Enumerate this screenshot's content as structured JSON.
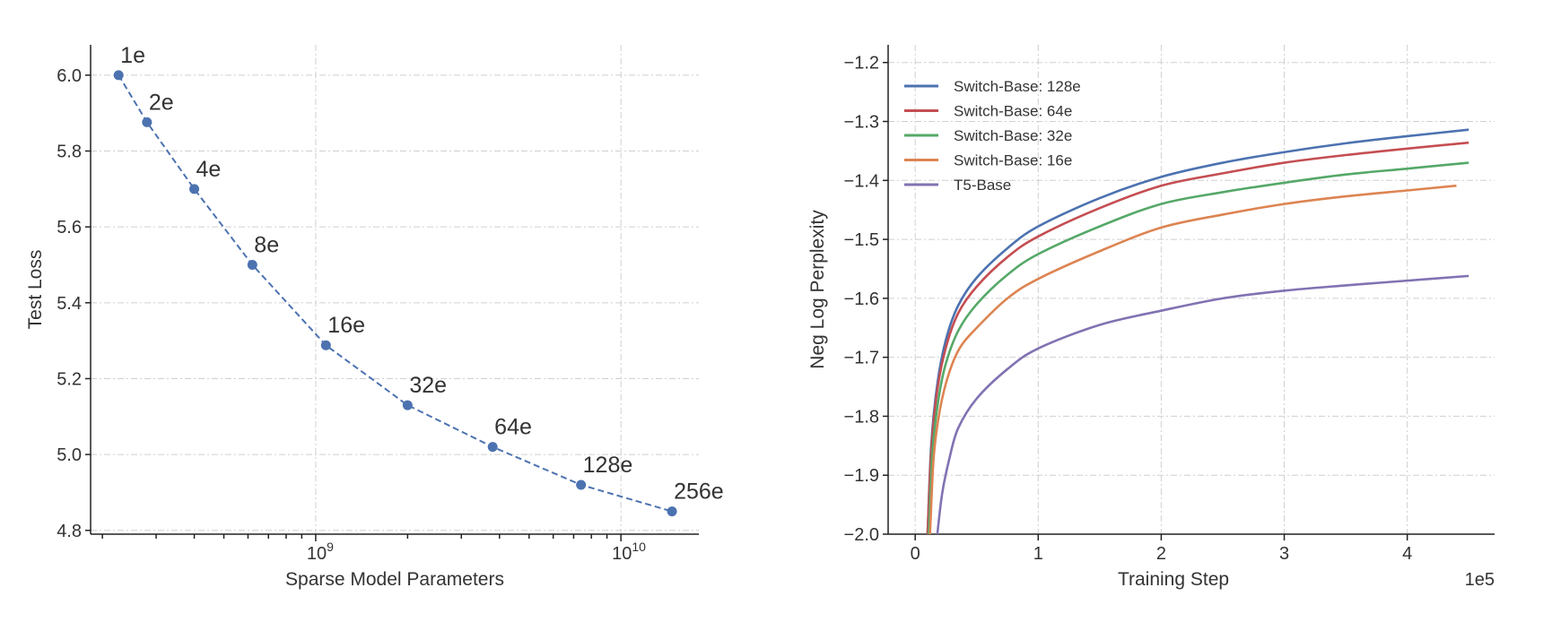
{
  "chart_data": [
    {
      "type": "line",
      "xlabel": "Sparse Model Parameters",
      "ylabel": "Test Loss",
      "xscale": "log",
      "xlim": [
        183000000.0,
        18000000000.0
      ],
      "ylim": [
        4.79,
        6.08
      ],
      "xticks": [
        {
          "value": 1000000000.0,
          "base": "10",
          "exp": "9"
        },
        {
          "value": 10000000000.0,
          "base": "10",
          "exp": "10"
        }
      ],
      "yticks": [
        "4.8",
        "5.0",
        "5.2",
        "5.4",
        "5.6",
        "5.8",
        "6.0"
      ],
      "grid": true,
      "color": "#4c72b0",
      "points": [
        {
          "label": "1e",
          "x": 226000000.0,
          "y": 6.0
        },
        {
          "label": "2e",
          "x": 280000000.0,
          "y": 5.876
        },
        {
          "label": "4e",
          "x": 400000000.0,
          "y": 5.7
        },
        {
          "label": "8e",
          "x": 620000000.0,
          "y": 5.5
        },
        {
          "label": "16e",
          "x": 1080000000.0,
          "y": 5.288
        },
        {
          "label": "32e",
          "x": 2000000000.0,
          "y": 5.13
        },
        {
          "label": "64e",
          "x": 3800000000.0,
          "y": 5.02
        },
        {
          "label": "128e",
          "x": 7400000000.0,
          "y": 4.92
        },
        {
          "label": "256e",
          "x": 14700000000.0,
          "y": 4.85
        }
      ]
    },
    {
      "type": "line",
      "xlabel": "Training Step",
      "x_offset_label": "1e5",
      "ylabel": "Neg Log Perplexity",
      "xlim": [
        -0.22,
        4.71
      ],
      "ylim": [
        -2.0,
        -1.17
      ],
      "xticks": [
        "0",
        "1",
        "2",
        "3",
        "4"
      ],
      "yticks": [
        "−2.0",
        "−1.9",
        "−1.8",
        "−1.7",
        "−1.6",
        "−1.5",
        "−1.4",
        "−1.3",
        "−1.2"
      ],
      "grid": true,
      "legend_position": "top-left",
      "series": [
        {
          "name": "Switch-Base: 128e",
          "color": "#4c72b0",
          "points": [
            [
              0.1,
              -2.0
            ],
            [
              0.13,
              -1.85
            ],
            [
              0.18,
              -1.745
            ],
            [
              0.25,
              -1.67
            ],
            [
              0.35,
              -1.612
            ],
            [
              0.5,
              -1.565
            ],
            [
              0.75,
              -1.515
            ],
            [
              1,
              -1.478
            ],
            [
              1.5,
              -1.43
            ],
            [
              2,
              -1.394
            ],
            [
              2.5,
              -1.37
            ],
            [
              3,
              -1.352
            ],
            [
              3.5,
              -1.337
            ],
            [
              4,
              -1.325
            ],
            [
              4.5,
              -1.314
            ]
          ]
        },
        {
          "name": "Switch-Base: 64e",
          "color": "#c44e52",
          "points": [
            [
              0.1,
              -2.0
            ],
            [
              0.13,
              -1.86
            ],
            [
              0.18,
              -1.755
            ],
            [
              0.25,
              -1.683
            ],
            [
              0.35,
              -1.625
            ],
            [
              0.5,
              -1.58
            ],
            [
              0.75,
              -1.53
            ],
            [
              1,
              -1.495
            ],
            [
              1.5,
              -1.447
            ],
            [
              2,
              -1.409
            ],
            [
              2.5,
              -1.388
            ],
            [
              3,
              -1.37
            ],
            [
              3.5,
              -1.357
            ],
            [
              4,
              -1.346
            ],
            [
              4.5,
              -1.336
            ]
          ]
        },
        {
          "name": "Switch-Base: 32e",
          "color": "#55a868",
          "points": [
            [
              0.11,
              -2.0
            ],
            [
              0.14,
              -1.86
            ],
            [
              0.19,
              -1.77
            ],
            [
              0.25,
              -1.71
            ],
            [
              0.35,
              -1.655
            ],
            [
              0.5,
              -1.61
            ],
            [
              0.75,
              -1.56
            ],
            [
              1,
              -1.525
            ],
            [
              1.5,
              -1.478
            ],
            [
              2,
              -1.44
            ],
            [
              2.5,
              -1.42
            ],
            [
              3,
              -1.404
            ],
            [
              3.5,
              -1.39
            ],
            [
              4,
              -1.38
            ],
            [
              4.5,
              -1.37
            ]
          ]
        },
        {
          "name": "Switch-Base: 16e",
          "color": "#dd8452",
          "points": [
            [
              0.12,
              -2.0
            ],
            [
              0.15,
              -1.87
            ],
            [
              0.2,
              -1.79
            ],
            [
              0.27,
              -1.73
            ],
            [
              0.36,
              -1.685
            ],
            [
              0.5,
              -1.65
            ],
            [
              0.75,
              -1.6
            ],
            [
              1,
              -1.567
            ],
            [
              1.5,
              -1.52
            ],
            [
              2,
              -1.48
            ],
            [
              2.5,
              -1.458
            ],
            [
              3,
              -1.44
            ],
            [
              3.5,
              -1.427
            ],
            [
              4,
              -1.417
            ],
            [
              4.4,
              -1.409
            ]
          ]
        },
        {
          "name": "T5-Base",
          "color": "#8172b2",
          "points": [
            [
              0.18,
              -2.0
            ],
            [
              0.22,
              -1.93
            ],
            [
              0.28,
              -1.87
            ],
            [
              0.35,
              -1.82
            ],
            [
              0.5,
              -1.77
            ],
            [
              0.75,
              -1.72
            ],
            [
              1,
              -1.685
            ],
            [
              1.5,
              -1.645
            ],
            [
              2,
              -1.621
            ],
            [
              2.5,
              -1.6
            ],
            [
              3,
              -1.587
            ],
            [
              3.5,
              -1.578
            ],
            [
              4,
              -1.57
            ],
            [
              4.5,
              -1.562
            ]
          ]
        }
      ]
    }
  ]
}
